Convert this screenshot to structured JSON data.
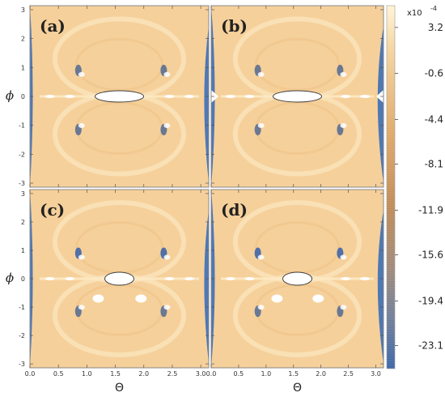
{
  "chart_data": {
    "type": "heatmap",
    "panels": [
      {
        "label": "(a)",
        "xlabel": "Θ",
        "ylabel": "ϕ",
        "xlim": [
          0,
          3.14
        ],
        "ylim": [
          -3.14,
          3.14
        ]
      },
      {
        "label": "(b)",
        "xlabel": "Θ",
        "ylabel": "ϕ",
        "xlim": [
          0,
          3.14
        ],
        "ylim": [
          -3.14,
          3.14
        ]
      },
      {
        "label": "(c)",
        "xlabel": "Θ",
        "ylabel": "ϕ",
        "xlim": [
          0,
          3.14
        ],
        "ylim": [
          -3.14,
          3.14
        ]
      },
      {
        "label": "(d)",
        "xlabel": "Θ",
        "ylabel": "ϕ",
        "xlim": [
          0,
          3.14
        ],
        "ylim": [
          -3.14,
          3.14
        ]
      }
    ],
    "x_ticks": [
      "0.0",
      "0.5",
      "1.0",
      "1.5",
      "2.0",
      "2.5",
      "3.0"
    ],
    "x_tick_values": [
      0,
      0.5,
      1.0,
      1.5,
      2.0,
      2.5,
      3.0
    ],
    "y_ticks": [
      "3",
      "2",
      "1",
      "0",
      "-1",
      "-2",
      "-3"
    ],
    "y_tick_values": [
      3,
      2,
      1,
      0,
      -1,
      -2,
      -3
    ],
    "xlabel": "Θ",
    "ylabel": "ϕ",
    "colorbar": {
      "exponent_label": "x10",
      "exponent": "-4",
      "ticks": [
        "3.2",
        "-0.6",
        "-4.4",
        "-8.1",
        "-11.9",
        "-15.6",
        "-19.4",
        "-23.1"
      ],
      "tick_values": [
        3.2,
        -0.6,
        -4.4,
        -8.1,
        -11.9,
        -15.6,
        -19.4,
        -23.1
      ],
      "range": [
        5.0,
        -25.0
      ],
      "colors": {
        "high": "#fff2d0",
        "mid": "#e6b478",
        "mid_low": "#c38a4e",
        "low_mid": "#9b8a80",
        "low": "#3a64a8"
      }
    },
    "colors": {
      "background": "#f6d09a",
      "blue": "#4f78b4",
      "white": "#ffffff"
    }
  }
}
